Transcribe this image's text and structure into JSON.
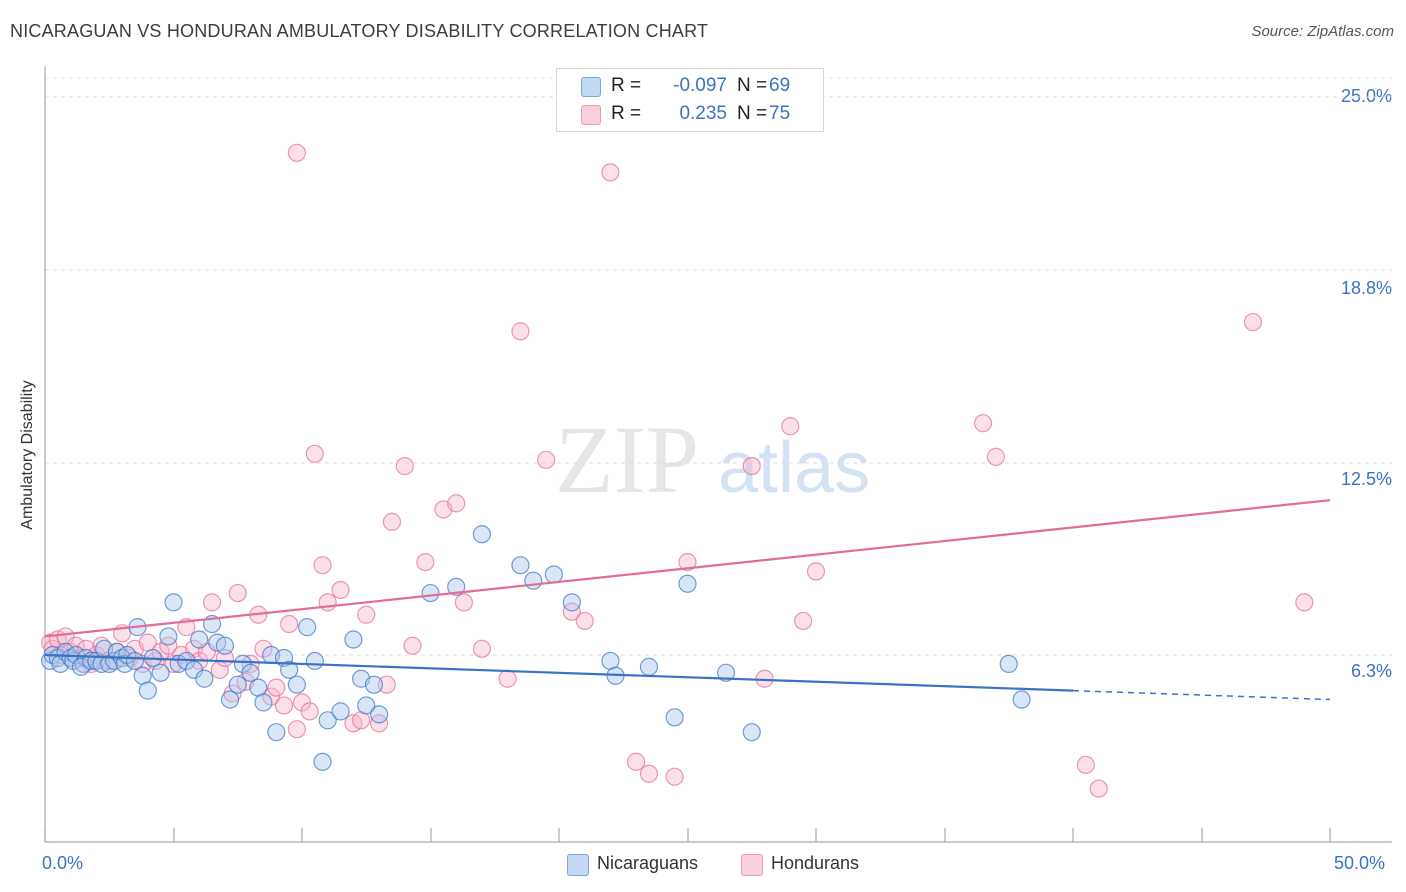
{
  "chart_data": {
    "type": "scatter",
    "title": "NICARAGUAN VS HONDURAN AMBULATORY DISABILITY CORRELATION CHART",
    "source": "Source: ZipAtlas.com",
    "ylabel": "Ambulatory Disability",
    "xlabel": "",
    "xlim": [
      0,
      50
    ],
    "ylim": [
      0,
      26
    ],
    "x_tick_labels": [
      "0.0%",
      "50.0%"
    ],
    "y_ticks": [
      6.3,
      12.5,
      18.8,
      25.0
    ],
    "y_tick_labels": [
      "6.3%",
      "12.5%",
      "18.8%",
      "25.0%"
    ],
    "watermark": "ZIPatlas",
    "legend": {
      "position": "top-center",
      "rows": [
        {
          "r_label": "R =",
          "r_value": "-0.097",
          "n_label": "N =",
          "n_value": "69",
          "color": "#aac8f0"
        },
        {
          "r_label": "R =",
          "r_value": "0.235",
          "n_label": "N =",
          "n_value": "75",
          "color": "#f6b9cf"
        }
      ]
    },
    "series": [
      {
        "name": "Nicaraguans",
        "color": "#3b73c4",
        "fill": "#aac8f0",
        "trend": {
          "x0": 0,
          "y0": 6.3,
          "x1": 40,
          "y1": 5.1,
          "dash_x1": 50,
          "dash_y1": 4.8
        },
        "points": [
          [
            0.2,
            6.1
          ],
          [
            0.3,
            6.3
          ],
          [
            0.5,
            6.2
          ],
          [
            0.6,
            6.0
          ],
          [
            0.8,
            6.4
          ],
          [
            1.0,
            6.2
          ],
          [
            1.1,
            6.1
          ],
          [
            1.2,
            6.3
          ],
          [
            1.5,
            6.0
          ],
          [
            1.6,
            6.2
          ],
          [
            1.4,
            5.9
          ],
          [
            1.8,
            6.1
          ],
          [
            2.0,
            6.1
          ],
          [
            2.2,
            6.0
          ],
          [
            2.3,
            6.5
          ],
          [
            2.5,
            6.0
          ],
          [
            2.7,
            6.1
          ],
          [
            2.8,
            6.4
          ],
          [
            3.0,
            6.2
          ],
          [
            3.1,
            6.0
          ],
          [
            3.2,
            6.3
          ],
          [
            3.5,
            6.1
          ],
          [
            3.6,
            7.2
          ],
          [
            3.8,
            5.6
          ],
          [
            4.0,
            5.1
          ],
          [
            4.2,
            6.2
          ],
          [
            4.5,
            5.7
          ],
          [
            4.8,
            6.9
          ],
          [
            5.0,
            8.0
          ],
          [
            5.2,
            6.0
          ],
          [
            5.5,
            6.1
          ],
          [
            5.8,
            5.8
          ],
          [
            6.0,
            6.8
          ],
          [
            6.2,
            5.5
          ],
          [
            6.5,
            7.3
          ],
          [
            6.7,
            6.7
          ],
          [
            7.0,
            6.6
          ],
          [
            7.2,
            4.8
          ],
          [
            7.5,
            5.3
          ],
          [
            7.7,
            6.0
          ],
          [
            8.0,
            5.7
          ],
          [
            8.3,
            5.2
          ],
          [
            8.5,
            4.7
          ],
          [
            8.8,
            6.3
          ],
          [
            9.0,
            3.7
          ],
          [
            9.3,
            6.2
          ],
          [
            9.5,
            5.8
          ],
          [
            9.8,
            5.3
          ],
          [
            10.2,
            7.2
          ],
          [
            10.5,
            6.1
          ],
          [
            10.8,
            2.7
          ],
          [
            11.0,
            4.1
          ],
          [
            11.5,
            4.4
          ],
          [
            12.0,
            6.8
          ],
          [
            12.3,
            5.5
          ],
          [
            12.5,
            4.6
          ],
          [
            12.8,
            5.3
          ],
          [
            13.0,
            4.3
          ],
          [
            15.0,
            8.3
          ],
          [
            16.0,
            8.5
          ],
          [
            17.0,
            10.2
          ],
          [
            18.5,
            9.2
          ],
          [
            19.0,
            8.7
          ],
          [
            19.8,
            8.9
          ],
          [
            20.5,
            8.0
          ],
          [
            22.0,
            6.1
          ],
          [
            22.2,
            5.6
          ],
          [
            24.5,
            4.2
          ],
          [
            25.0,
            8.6
          ]
        ]
      },
      {
        "name": "Hondurans",
        "color": "#e36c97",
        "fill": "#f6b9cf",
        "trend": {
          "x0": 0,
          "y0": 6.9,
          "x1": 50,
          "y1": 11.3
        },
        "points": [
          [
            0.2,
            6.7
          ],
          [
            0.3,
            6.5
          ],
          [
            0.5,
            6.8
          ],
          [
            0.6,
            6.3
          ],
          [
            0.8,
            6.9
          ],
          [
            1.0,
            6.4
          ],
          [
            1.2,
            6.6
          ],
          [
            1.4,
            6.2
          ],
          [
            1.6,
            6.5
          ],
          [
            1.8,
            6.0
          ],
          [
            2.0,
            6.3
          ],
          [
            2.2,
            6.6
          ],
          [
            2.5,
            6.1
          ],
          [
            2.8,
            6.4
          ],
          [
            3.0,
            7.0
          ],
          [
            3.3,
            6.2
          ],
          [
            3.5,
            6.5
          ],
          [
            3.8,
            6.0
          ],
          [
            4.0,
            6.7
          ],
          [
            4.3,
            6.1
          ],
          [
            4.5,
            6.4
          ],
          [
            4.8,
            6.6
          ],
          [
            5.0,
            6.0
          ],
          [
            5.3,
            6.3
          ],
          [
            5.5,
            7.2
          ],
          [
            5.8,
            6.5
          ],
          [
            6.0,
            6.1
          ],
          [
            6.3,
            6.4
          ],
          [
            6.5,
            8.0
          ],
          [
            6.8,
            5.8
          ],
          [
            7.0,
            6.2
          ],
          [
            7.3,
            5.0
          ],
          [
            7.5,
            8.3
          ],
          [
            7.8,
            5.4
          ],
          [
            8.0,
            6.0
          ],
          [
            8.3,
            7.6
          ],
          [
            8.5,
            6.5
          ],
          [
            8.8,
            4.9
          ],
          [
            9.0,
            5.2
          ],
          [
            9.3,
            4.6
          ],
          [
            9.5,
            7.3
          ],
          [
            9.8,
            3.8
          ],
          [
            10.0,
            4.7
          ],
          [
            10.3,
            4.4
          ],
          [
            10.5,
            12.8
          ],
          [
            10.8,
            9.2
          ],
          [
            11.0,
            8.0
          ],
          [
            11.5,
            8.4
          ],
          [
            12.0,
            4.0
          ],
          [
            12.3,
            4.1
          ],
          [
            12.5,
            7.6
          ],
          [
            13.0,
            4.0
          ],
          [
            13.3,
            5.3
          ],
          [
            13.5,
            10.6
          ],
          [
            14.0,
            12.4
          ],
          [
            14.3,
            6.6
          ],
          [
            14.8,
            9.3
          ],
          [
            15.5,
            11.0
          ],
          [
            16.0,
            11.2
          ],
          [
            16.3,
            8.0
          ],
          [
            17.0,
            6.5
          ],
          [
            18.0,
            5.5
          ],
          [
            18.5,
            16.8
          ],
          [
            19.5,
            12.6
          ],
          [
            20.5,
            7.7
          ],
          [
            21.0,
            7.4
          ],
          [
            22.0,
            22.3
          ],
          [
            23.0,
            2.7
          ],
          [
            23.5,
            2.3
          ],
          [
            24.5,
            2.2
          ],
          [
            25.0,
            9.3
          ],
          [
            27.5,
            12.4
          ],
          [
            28.0,
            5.5
          ],
          [
            29.0,
            13.7
          ],
          [
            29.5,
            7.4
          ]
        ]
      }
    ],
    "extra_points_note": "",
    "extra_hondurans": [
      [
        9.8,
        23.0
      ],
      [
        36.5,
        13.8
      ],
      [
        37.0,
        12.7
      ],
      [
        30.0,
        9.0
      ],
      [
        40.5,
        2.6
      ],
      [
        47.0,
        17.1
      ],
      [
        49.0,
        8.0
      ],
      [
        41.0,
        1.8
      ]
    ],
    "extra_nicaraguans": [
      [
        23.5,
        5.9
      ],
      [
        26.5,
        5.7
      ],
      [
        27.5,
        3.7
      ],
      [
        37.5,
        6.0
      ],
      [
        38.0,
        4.8
      ]
    ]
  },
  "bottom_legend": [
    {
      "label": "Nicaraguans",
      "fill": "#aac8f0",
      "border": "#3b73c4"
    },
    {
      "label": "Hondurans",
      "fill": "#f6c6d8",
      "border": "#e36c97"
    }
  ]
}
